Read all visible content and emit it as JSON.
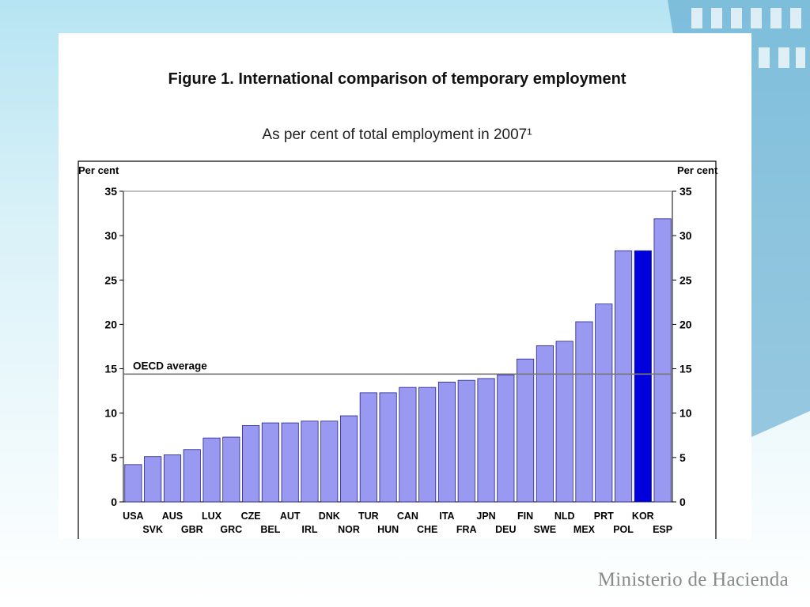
{
  "footer": {
    "brand": "Ministerio de Hacienda"
  },
  "colors": {
    "bar": "#9999f2",
    "highlight": "#0000dd",
    "bar_stroke": "#22228a",
    "average_line": "#777777",
    "gridline": "#9a9a9a"
  },
  "chart_data": {
    "type": "bar",
    "title": "Figure 1. International comparison of temporary employment",
    "subtitle": "As per cent of total employment in 2007¹",
    "ylabel_left": "Per cent",
    "ylabel_right": "Per cent",
    "ylim": [
      0,
      35
    ],
    "yticks": [
      "0",
      "5",
      "10",
      "15",
      "20",
      "25",
      "30",
      "35"
    ],
    "grid": false,
    "categories": [
      "USA",
      "SVK",
      "AUS",
      "GBR",
      "LUX",
      "GRC",
      "CZE",
      "BEL",
      "AUT",
      "IRL",
      "DNK",
      "NOR",
      "TUR",
      "HUN",
      "CAN",
      "CHE",
      "ITA",
      "FRA",
      "JPN",
      "DEU",
      "FIN",
      "SWE",
      "NLD",
      "MEX",
      "PRT",
      "POL",
      "KOR",
      "ESP"
    ],
    "values": [
      4.2,
      5.1,
      5.3,
      5.9,
      7.2,
      7.3,
      8.6,
      8.9,
      8.9,
      9.1,
      9.1,
      9.7,
      12.3,
      12.3,
      12.9,
      12.9,
      13.5,
      13.7,
      13.9,
      14.3,
      16.1,
      17.6,
      18.1,
      20.3,
      22.3,
      28.3,
      28.3,
      31.9
    ],
    "highlight": "KOR",
    "reference_line": {
      "label": "OECD average",
      "value": 14.4
    }
  }
}
